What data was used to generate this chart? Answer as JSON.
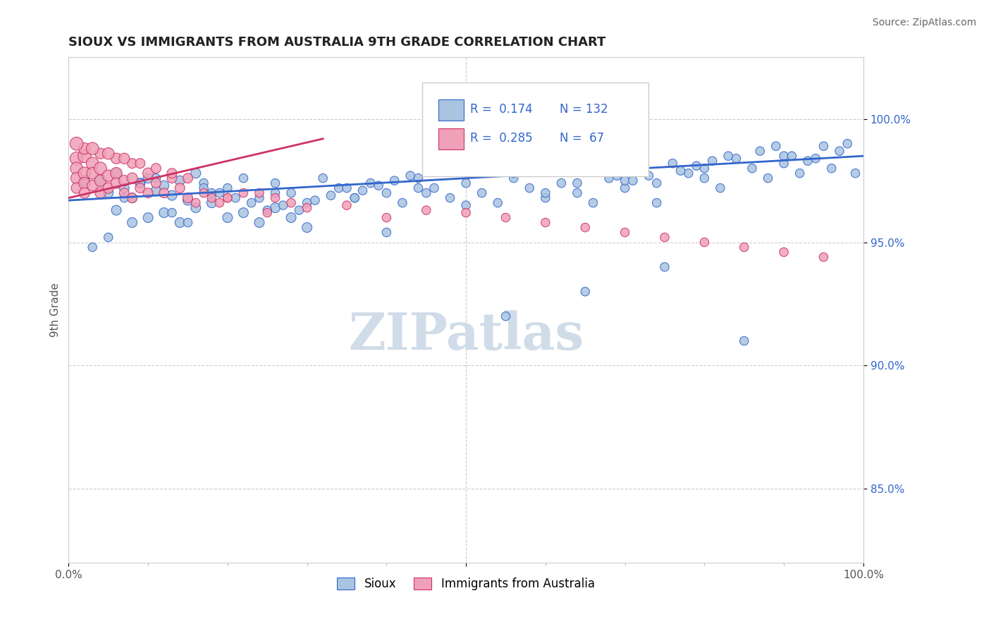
{
  "title": "SIOUX VS IMMIGRANTS FROM AUSTRALIA 9TH GRADE CORRELATION CHART",
  "source_text": "Source: ZipAtlas.com",
  "ylabel": "9th Grade",
  "ytick_labels": [
    "85.0%",
    "90.0%",
    "95.0%",
    "100.0%"
  ],
  "ytick_values": [
    0.85,
    0.9,
    0.95,
    1.0
  ],
  "xlim": [
    0.0,
    1.0
  ],
  "ylim": [
    0.82,
    1.025
  ],
  "legend_blue_R": "0.174",
  "legend_blue_N": "132",
  "legend_pink_R": "0.285",
  "legend_pink_N": "67",
  "blue_face_color": "#a8c4e0",
  "blue_edge_color": "#3366cc",
  "pink_face_color": "#f0a0b8",
  "pink_edge_color": "#cc3366",
  "blue_line_color": "#3366cc",
  "pink_line_color": "#cc3366",
  "watermark_color": "#d0dce8",
  "blue_line_x": [
    0.0,
    1.0
  ],
  "blue_line_y": [
    0.967,
    0.985
  ],
  "pink_line_x": [
    0.0,
    0.32
  ],
  "pink_line_y": [
    0.968,
    0.992
  ],
  "blue_scatter_x": [
    0.02,
    0.04,
    0.05,
    0.06,
    0.07,
    0.08,
    0.09,
    0.1,
    0.11,
    0.12,
    0.13,
    0.14,
    0.15,
    0.16,
    0.17,
    0.18,
    0.2,
    0.22,
    0.24,
    0.26,
    0.28,
    0.3,
    0.32,
    0.34,
    0.36,
    0.38,
    0.4,
    0.42,
    0.44,
    0.46,
    0.48,
    0.5,
    0.52,
    0.54,
    0.56,
    0.58,
    0.6,
    0.62,
    0.64,
    0.66,
    0.68,
    0.7,
    0.72,
    0.74,
    0.76,
    0.78,
    0.8,
    0.82,
    0.84,
    0.86,
    0.88,
    0.9,
    0.92,
    0.94,
    0.96,
    0.98,
    0.99,
    0.06,
    0.08,
    0.1,
    0.12,
    0.14,
    0.16,
    0.18,
    0.2,
    0.22,
    0.24,
    0.26,
    0.28,
    0.3,
    0.4,
    0.5,
    0.6,
    0.7,
    0.8,
    0.9,
    0.55,
    0.65,
    0.75,
    0.85,
    0.45,
    0.35,
    0.25,
    0.15,
    0.05,
    0.03,
    0.07,
    0.09,
    0.11,
    0.13,
    0.17,
    0.19,
    0.21,
    0.23,
    0.27,
    0.29,
    0.31,
    0.33,
    0.37,
    0.39,
    0.41,
    0.43,
    0.47,
    0.49,
    0.51,
    0.53,
    0.57,
    0.59,
    0.61,
    0.63,
    0.67,
    0.69,
    0.71,
    0.73,
    0.77,
    0.79,
    0.81,
    0.83,
    0.87,
    0.89,
    0.91,
    0.93,
    0.97,
    0.95,
    0.44,
    0.56,
    0.36,
    0.64,
    0.26,
    0.74
  ],
  "blue_scatter_y": [
    0.975,
    0.975,
    0.97,
    0.978,
    0.972,
    0.968,
    0.974,
    0.976,
    0.971,
    0.973,
    0.969,
    0.975,
    0.967,
    0.978,
    0.974,
    0.97,
    0.972,
    0.976,
    0.968,
    0.974,
    0.97,
    0.966,
    0.976,
    0.972,
    0.968,
    0.974,
    0.97,
    0.966,
    0.976,
    0.972,
    0.968,
    0.974,
    0.97,
    0.966,
    0.976,
    0.972,
    0.968,
    0.974,
    0.97,
    0.966,
    0.976,
    0.972,
    0.98,
    0.974,
    0.982,
    0.978,
    0.976,
    0.972,
    0.984,
    0.98,
    0.976,
    0.982,
    0.978,
    0.984,
    0.98,
    0.99,
    0.978,
    0.963,
    0.958,
    0.96,
    0.962,
    0.958,
    0.964,
    0.966,
    0.96,
    0.962,
    0.958,
    0.964,
    0.96,
    0.956,
    0.954,
    0.965,
    0.97,
    0.975,
    0.98,
    0.985,
    0.92,
    0.93,
    0.94,
    0.91,
    0.97,
    0.972,
    0.963,
    0.958,
    0.952,
    0.948,
    0.968,
    0.974,
    0.976,
    0.962,
    0.972,
    0.97,
    0.968,
    0.966,
    0.965,
    0.963,
    0.967,
    0.969,
    0.971,
    0.973,
    0.975,
    0.977,
    0.979,
    0.981,
    0.983,
    0.985,
    0.987,
    0.985,
    0.983,
    0.981,
    0.979,
    0.977,
    0.975,
    0.977,
    0.979,
    0.981,
    0.983,
    0.985,
    0.987,
    0.989,
    0.985,
    0.983,
    0.987,
    0.989,
    0.972,
    0.978,
    0.968,
    0.974,
    0.97,
    0.966
  ],
  "pink_scatter_x": [
    0.01,
    0.01,
    0.01,
    0.01,
    0.02,
    0.02,
    0.02,
    0.02,
    0.03,
    0.03,
    0.03,
    0.04,
    0.04,
    0.04,
    0.05,
    0.05,
    0.06,
    0.06,
    0.07,
    0.07,
    0.08,
    0.08,
    0.09,
    0.1,
    0.1,
    0.11,
    0.12,
    0.13,
    0.14,
    0.15,
    0.16,
    0.17,
    0.18,
    0.19,
    0.2,
    0.22,
    0.24,
    0.26,
    0.28,
    0.3,
    0.35,
    0.4,
    0.45,
    0.5,
    0.55,
    0.6,
    0.65,
    0.7,
    0.75,
    0.8,
    0.85,
    0.9,
    0.95,
    0.02,
    0.04,
    0.06,
    0.08,
    0.01,
    0.03,
    0.05,
    0.07,
    0.09,
    0.11,
    0.13,
    0.15,
    0.2,
    0.25
  ],
  "pink_scatter_y": [
    0.984,
    0.98,
    0.976,
    0.972,
    0.985,
    0.978,
    0.974,
    0.97,
    0.982,
    0.978,
    0.973,
    0.98,
    0.975,
    0.97,
    0.977,
    0.972,
    0.978,
    0.974,
    0.975,
    0.97,
    0.976,
    0.968,
    0.972,
    0.978,
    0.97,
    0.974,
    0.97,
    0.976,
    0.972,
    0.968,
    0.966,
    0.97,
    0.968,
    0.966,
    0.968,
    0.97,
    0.97,
    0.968,
    0.966,
    0.964,
    0.965,
    0.96,
    0.963,
    0.962,
    0.96,
    0.958,
    0.956,
    0.954,
    0.952,
    0.95,
    0.948,
    0.946,
    0.944,
    0.988,
    0.986,
    0.984,
    0.982,
    0.99,
    0.988,
    0.986,
    0.984,
    0.982,
    0.98,
    0.978,
    0.976,
    0.968,
    0.962
  ],
  "blue_sizes": [
    120,
    120,
    100,
    100,
    100,
    100,
    100,
    100,
    100,
    100,
    100,
    100,
    100,
    100,
    80,
    80,
    80,
    80,
    80,
    80,
    80,
    80,
    80,
    80,
    80,
    80,
    80,
    80,
    80,
    80,
    80,
    80,
    80,
    80,
    80,
    80,
    80,
    80,
    80,
    80,
    80,
    80,
    80,
    80,
    80,
    80,
    80,
    80,
    80,
    80,
    80,
    80,
    80,
    80,
    80,
    80,
    80,
    100,
    100,
    100,
    100,
    100,
    100,
    100,
    100,
    100,
    100,
    100,
    100,
    100,
    80,
    80,
    80,
    80,
    80,
    80,
    80,
    80,
    80,
    80,
    80,
    80,
    80,
    80,
    80,
    80,
    80,
    80,
    80,
    80,
    80,
    80,
    80,
    80,
    80,
    80,
    80,
    80,
    80,
    80,
    80,
    80,
    80,
    80,
    80,
    80,
    80,
    80,
    80,
    80,
    80,
    80,
    80,
    80,
    80,
    80,
    80,
    80,
    80,
    80,
    80,
    80,
    80,
    80,
    80,
    80,
    80,
    80,
    80,
    80
  ],
  "pink_sizes": [
    180,
    160,
    140,
    120,
    180,
    160,
    140,
    120,
    160,
    140,
    120,
    160,
    140,
    120,
    140,
    120,
    140,
    120,
    120,
    100,
    120,
    100,
    100,
    120,
    100,
    100,
    100,
    100,
    100,
    100,
    80,
    80,
    80,
    80,
    80,
    80,
    80,
    80,
    80,
    80,
    80,
    80,
    80,
    80,
    80,
    80,
    80,
    80,
    80,
    80,
    80,
    80,
    80,
    140,
    120,
    120,
    100,
    180,
    160,
    140,
    120,
    100,
    100,
    100,
    100,
    80,
    80
  ]
}
